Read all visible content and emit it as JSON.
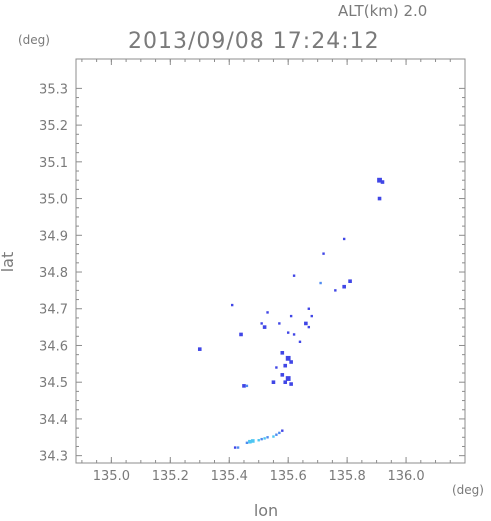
{
  "header": {
    "altitude_label": "ALT(km) 2.0",
    "timestamp": "2013/09/08 17:24:12"
  },
  "chart_data": {
    "type": "scatter",
    "title": "2013/09/08 17:24:12",
    "xlabel": "lon",
    "ylabel": "lat",
    "x_unit": "(deg)",
    "y_unit": "(deg)",
    "xlim": [
      134.88,
      136.2
    ],
    "ylim": [
      34.28,
      35.38
    ],
    "x_ticks": [
      "135.0",
      "135.2",
      "135.4",
      "135.6",
      "135.8",
      "136.0"
    ],
    "x_tick_values": [
      135.0,
      135.2,
      135.4,
      135.6,
      135.8,
      136.0
    ],
    "y_ticks": [
      "34.3",
      "34.4",
      "34.5",
      "34.6",
      "34.7",
      "34.8",
      "34.9",
      "35.0",
      "35.1",
      "35.2",
      "35.3"
    ],
    "y_tick_values": [
      34.3,
      34.4,
      34.5,
      34.6,
      34.7,
      34.8,
      34.9,
      35.0,
      35.1,
      35.2,
      35.3
    ],
    "grid": false,
    "colors": {
      "strong": "#4046e6",
      "medium": "#4f8cf0",
      "light": "#4ec6f2",
      "axis": "#8c8c8c",
      "text": "#7a7a7a"
    },
    "points": [
      {
        "x": 135.91,
        "y": 35.05,
        "s": 3,
        "c": "strong"
      },
      {
        "x": 135.92,
        "y": 35.045,
        "s": 2,
        "c": "strong"
      },
      {
        "x": 135.91,
        "y": 35.0,
        "s": 2,
        "c": "strong"
      },
      {
        "x": 135.79,
        "y": 34.89,
        "s": 1,
        "c": "strong"
      },
      {
        "x": 135.72,
        "y": 34.85,
        "s": 1,
        "c": "strong"
      },
      {
        "x": 135.62,
        "y": 34.79,
        "s": 1,
        "c": "strong"
      },
      {
        "x": 135.81,
        "y": 34.775,
        "s": 2,
        "c": "strong"
      },
      {
        "x": 135.79,
        "y": 34.76,
        "s": 2,
        "c": "strong"
      },
      {
        "x": 135.76,
        "y": 34.75,
        "s": 1,
        "c": "strong"
      },
      {
        "x": 135.71,
        "y": 34.77,
        "s": 1,
        "c": "medium"
      },
      {
        "x": 135.41,
        "y": 34.71,
        "s": 1,
        "c": "strong"
      },
      {
        "x": 135.53,
        "y": 34.69,
        "s": 1,
        "c": "strong"
      },
      {
        "x": 135.67,
        "y": 34.7,
        "s": 1,
        "c": "strong"
      },
      {
        "x": 135.61,
        "y": 34.68,
        "s": 1,
        "c": "strong"
      },
      {
        "x": 135.68,
        "y": 34.68,
        "s": 1,
        "c": "strong"
      },
      {
        "x": 135.51,
        "y": 34.66,
        "s": 1,
        "c": "strong"
      },
      {
        "x": 135.52,
        "y": 34.65,
        "s": 2,
        "c": "strong"
      },
      {
        "x": 135.57,
        "y": 34.66,
        "s": 1,
        "c": "strong"
      },
      {
        "x": 135.66,
        "y": 34.66,
        "s": 2,
        "c": "strong"
      },
      {
        "x": 135.67,
        "y": 34.65,
        "s": 1,
        "c": "strong"
      },
      {
        "x": 135.6,
        "y": 34.635,
        "s": 1,
        "c": "strong"
      },
      {
        "x": 135.62,
        "y": 34.63,
        "s": 1,
        "c": "strong"
      },
      {
        "x": 135.44,
        "y": 34.63,
        "s": 2,
        "c": "strong"
      },
      {
        "x": 135.64,
        "y": 34.61,
        "s": 1,
        "c": "strong"
      },
      {
        "x": 135.3,
        "y": 34.59,
        "s": 2,
        "c": "strong"
      },
      {
        "x": 135.58,
        "y": 34.58,
        "s": 2,
        "c": "strong"
      },
      {
        "x": 135.6,
        "y": 34.565,
        "s": 3,
        "c": "strong"
      },
      {
        "x": 135.61,
        "y": 34.555,
        "s": 2,
        "c": "strong"
      },
      {
        "x": 135.59,
        "y": 34.545,
        "s": 2,
        "c": "strong"
      },
      {
        "x": 135.56,
        "y": 34.54,
        "s": 1,
        "c": "strong"
      },
      {
        "x": 135.58,
        "y": 34.52,
        "s": 2,
        "c": "strong"
      },
      {
        "x": 135.6,
        "y": 34.51,
        "s": 3,
        "c": "strong"
      },
      {
        "x": 135.59,
        "y": 34.5,
        "s": 2,
        "c": "strong"
      },
      {
        "x": 135.55,
        "y": 34.5,
        "s": 2,
        "c": "strong"
      },
      {
        "x": 135.61,
        "y": 34.495,
        "s": 2,
        "c": "strong"
      },
      {
        "x": 135.45,
        "y": 34.49,
        "s": 2,
        "c": "strong"
      },
      {
        "x": 135.46,
        "y": 34.49,
        "s": 1,
        "c": "medium"
      },
      {
        "x": 135.58,
        "y": 34.368,
        "s": 1,
        "c": "strong"
      },
      {
        "x": 135.57,
        "y": 34.362,
        "s": 1,
        "c": "medium"
      },
      {
        "x": 135.56,
        "y": 34.357,
        "s": 1,
        "c": "medium"
      },
      {
        "x": 135.55,
        "y": 34.352,
        "s": 1,
        "c": "light"
      },
      {
        "x": 135.53,
        "y": 34.35,
        "s": 1,
        "c": "medium"
      },
      {
        "x": 135.52,
        "y": 34.347,
        "s": 1,
        "c": "light"
      },
      {
        "x": 135.51,
        "y": 34.345,
        "s": 1,
        "c": "medium"
      },
      {
        "x": 135.5,
        "y": 34.342,
        "s": 1,
        "c": "light"
      },
      {
        "x": 135.48,
        "y": 34.34,
        "s": 2,
        "c": "light"
      },
      {
        "x": 135.47,
        "y": 34.338,
        "s": 2,
        "c": "light"
      },
      {
        "x": 135.46,
        "y": 34.335,
        "s": 1,
        "c": "medium"
      },
      {
        "x": 135.43,
        "y": 34.322,
        "s": 1,
        "c": "medium"
      },
      {
        "x": 135.42,
        "y": 34.322,
        "s": 1,
        "c": "strong"
      }
    ]
  }
}
